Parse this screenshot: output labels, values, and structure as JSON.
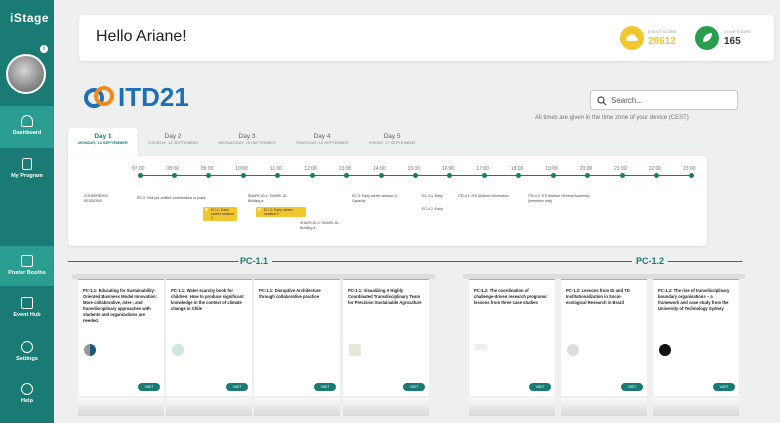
{
  "app": {
    "logo": "iStage"
  },
  "sidebar": {
    "items": [
      {
        "label": "Dashboard",
        "icon": "dashboard-icon",
        "active": true
      },
      {
        "label": "My Program",
        "icon": "program-icon",
        "active": false
      },
      {
        "label": "Poster Booths",
        "icon": "booth-icon",
        "active": true
      },
      {
        "label": "Event Hub",
        "icon": "hub-icon",
        "active": false
      },
      {
        "label": "Settings",
        "icon": "settings-icon",
        "active": false
      },
      {
        "label": "Help",
        "icon": "help-icon",
        "active": false
      }
    ],
    "info_badge": "i"
  },
  "header": {
    "greeting": "Hello Ariane!",
    "event_score_label": "EVENT SCORE",
    "event_score": "28612",
    "your_score_label": "YOUR SCORE",
    "your_score": "165",
    "colors": {
      "event": "#f2c62f",
      "your": "#2a9d4e"
    }
  },
  "brand": {
    "name": "ITD21"
  },
  "search": {
    "placeholder": "Search..."
  },
  "timezone_note": "All times are given in the time zone of your device (CEST)",
  "days": [
    {
      "day": "Day 1",
      "date": "MONDAY, 13 SEPTEMBER",
      "active": true
    },
    {
      "day": "Day 2",
      "date": "TUESDAY, 14 SEPTEMBER",
      "active": false
    },
    {
      "day": "Day 3",
      "date": "WEDNESDAY, 15 SEPTEMBER",
      "active": false
    },
    {
      "day": "Day 4",
      "date": "THURSDAY, 16 SEPTEMBER",
      "active": false
    },
    {
      "day": "Day 5",
      "date": "FRIDAY, 17 SEPTEMBER",
      "active": false
    }
  ],
  "timeline": {
    "hours": [
      "07:00",
      "08:00",
      "09:00",
      "10:00",
      "11:00",
      "12:00",
      "13:00",
      "14:00",
      "15:00",
      "16:00",
      "17:00",
      "18:00",
      "19:00",
      "20:00",
      "21:00",
      "22:00",
      "23:00"
    ],
    "row_label": "CONFERENCE SESSIONS",
    "sessions": [
      "PC-0: Visit pre-crafted contributions in posts",
      "EC-1: Early career session 1",
      "SHAPE-ID-1: SHAPE-ID - Building a",
      "EC-2: Early career session 2",
      "SHAPE-ID-2: SHAPE-ID - Building a",
      "EC-3: Early career session 3 - Capacity",
      "EC-4.1: Early",
      "EC-4.2: Early",
      "ITD-4.1: ITD Alliance Information",
      "ITD-4.2: ITD Alliance General Assembly (members only)"
    ]
  },
  "tracks": [
    {
      "label": "PC-1.1"
    },
    {
      "label": "PC-1.2"
    }
  ],
  "booths": [
    {
      "title": "PC-1.1: Educating for Sustainability-Oriented Business Model Innovation: More collaborative, inter-, and transdisciplinary approaches with students and organizations are needed.",
      "visit": "VISIT"
    },
    {
      "title": "PC-1.1: Water scarcity book for children: How to produce significant knowledge in the context of climate change in Chile",
      "visit": "VISIT"
    },
    {
      "title": "PC-1.1: Disruptive Architecture through collaborative practice",
      "visit": "VISIT"
    },
    {
      "title": "PC-1.1: Visualizing A Highly Coordinated Transdisciplinary Team for Precision Sustainable Agriculture",
      "visit": "VISIT"
    },
    {
      "title": "PC-1.2: The coordination of challenge-driven research programs: lessons from three case studies",
      "visit": "VISIT"
    },
    {
      "title": "PC-1.2: Lessons from ID and TD Institutionalization in Socio-ecological Research in Brazil",
      "visit": "VISIT"
    },
    {
      "title": "PC-1.2: The rise of transdisciplinary boundary organisations – a framework and case study from the University of Technology Sydney",
      "visit": "VISIT"
    }
  ]
}
